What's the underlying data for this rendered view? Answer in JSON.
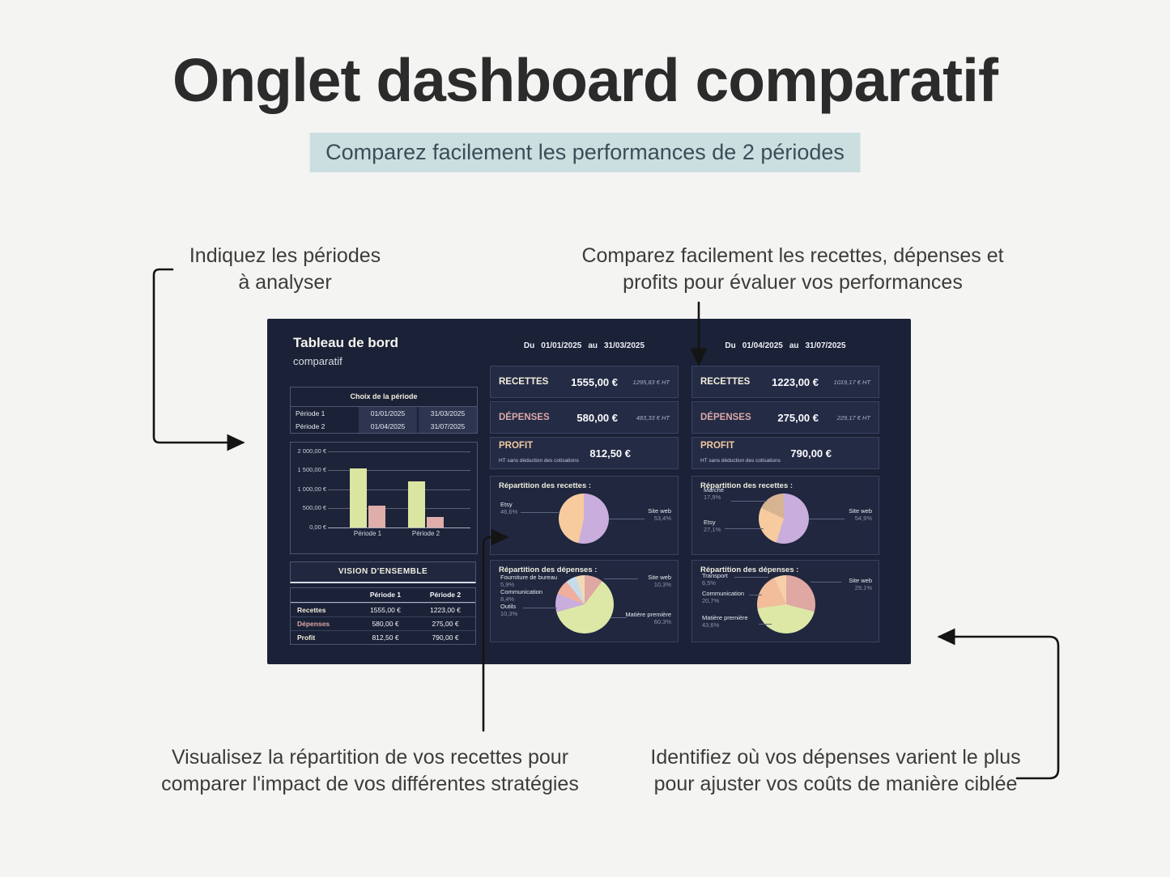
{
  "page": {
    "background": "#f4f4f2",
    "title": "Onglet dashboard comparatif",
    "subtitle": "Comparez facilement les performances de 2 périodes"
  },
  "annotations": {
    "top_left": {
      "line1": "Indiquez les périodes",
      "line2": "à analyser"
    },
    "top_right": {
      "line1": "Comparez facilement les recettes, dépenses et",
      "line2": "profits pour évaluer vos performances"
    },
    "bottom_left": {
      "line1": "Visualisez la répartition de vos recettes pour",
      "line2": "comparer l'impact de vos différentes stratégies"
    },
    "bottom_right": {
      "line1": "Identifiez où vos dépenses varient le plus",
      "line2": "pour ajuster vos coûts de manière ciblée"
    }
  },
  "dashboard": {
    "title": "Tableau de bord",
    "subtitle": "comparatif",
    "colors": {
      "background": "#1b2136",
      "card": "#242b45",
      "recettes_label": "#f2eddc",
      "depenses_label": "#dba8a8",
      "profit_label": "#f0c9a0",
      "bar_recettes": "#dbe5a2",
      "bar_depenses": "#dfaeab"
    },
    "period_selector": {
      "header": "Choix de la période",
      "rows": [
        {
          "label": "Période 1",
          "start": "01/01/2025",
          "end": "31/03/2025"
        },
        {
          "label": "Période 2",
          "start": "01/04/2025",
          "end": "31/07/2025"
        }
      ]
    },
    "columns": [
      {
        "date_range": {
          "du": "Du",
          "start": "01/01/2025",
          "au": "au",
          "end": "31/03/2025"
        },
        "cards": {
          "recettes": {
            "label": "RECETTES",
            "value": "1555,00 €",
            "ht": "1295,83 € HT"
          },
          "depenses": {
            "label": "DÉPENSES",
            "value": "580,00 €",
            "ht": "483,33 € HT"
          },
          "profit": {
            "label": "PROFIT",
            "note": "HT sans déduction des cotisations",
            "value": "812,50 €"
          }
        },
        "recettes_pie_title": "Répartition des recettes :",
        "depenses_pie_title": "Répartition des dépenses :"
      },
      {
        "date_range": {
          "du": "Du",
          "start": "01/04/2025",
          "au": "au",
          "end": "31/07/2025"
        },
        "cards": {
          "recettes": {
            "label": "RECETTES",
            "value": "1223,00 €",
            "ht": "1019,17 € HT"
          },
          "depenses": {
            "label": "DÉPENSES",
            "value": "275,00 €",
            "ht": "229,17 € HT"
          },
          "profit": {
            "label": "PROFIT",
            "note": "HT sans déduction des cotisations",
            "value": "790,00 €"
          }
        },
        "recettes_pie_title": "Répartition des recettes :",
        "depenses_pie_title": "Répartition des dépenses :"
      }
    ],
    "overview": {
      "header": "VISION D'ENSEMBLE",
      "col1": "Période 1",
      "col2": "Période 2",
      "rows": [
        {
          "label": "Recettes",
          "v1": "1555,00 €",
          "v2": "1223,00 €"
        },
        {
          "label": "Dépenses",
          "v1": "580,00 €",
          "v2": "275,00 €"
        },
        {
          "label": "Profit",
          "v1": "812,50 €",
          "v2": "790,00 €"
        }
      ]
    }
  },
  "chart_data": [
    {
      "type": "bar",
      "title": "",
      "categories": [
        "Période 1",
        "Période 2"
      ],
      "series": [
        {
          "name": "Recettes",
          "values": [
            1555,
            1223
          ],
          "color": "#dbe5a2"
        },
        {
          "name": "Dépenses",
          "values": [
            580,
            275
          ],
          "color": "#dfaeab"
        }
      ],
      "ylim": [
        0,
        2000
      ],
      "ytick_labels": [
        "2 000,00 €",
        "1 500,00 €",
        "1 000,00 €",
        "500,00 €",
        "0,00 €"
      ],
      "grid": true,
      "legend": false
    },
    {
      "type": "pie",
      "title": "Répartition des recettes :",
      "period": "Période 1",
      "slices": [
        {
          "label": "Site web",
          "value": 53.4,
          "pct_label": "53,4%",
          "color": "#c9addc"
        },
        {
          "label": "Etsy",
          "value": 46.6,
          "pct_label": "46,6%",
          "color": "#f7cb9e"
        }
      ]
    },
    {
      "type": "pie",
      "title": "Répartition des recettes :",
      "period": "Période 2",
      "slices": [
        {
          "label": "Site web",
          "value": 54.9,
          "pct_label": "54,9%",
          "color": "#c9addc"
        },
        {
          "label": "Etsy",
          "value": 27.1,
          "pct_label": "27,1%",
          "color": "#f7cb9e"
        },
        {
          "label": "Marché",
          "value": 17.9,
          "pct_label": "17,9%",
          "color": "#d6b492"
        }
      ]
    },
    {
      "type": "pie",
      "title": "Répartition des dépenses :",
      "period": "Période 1",
      "slices": [
        {
          "label": "Site web",
          "value": 10.3,
          "pct_label": "10,3%",
          "color": "#dfa8a3"
        },
        {
          "label": "Matière première",
          "value": 60.3,
          "pct_label": "60,3%",
          "color": "#dde8a7"
        },
        {
          "label": "Outils",
          "value": 10.3,
          "pct_label": "10,3%",
          "color": "#c9addc"
        },
        {
          "label": "Communication",
          "value": 8.4,
          "pct_label": "8,4%",
          "color": "#f0ae9d"
        },
        {
          "label": "Fourniture de bureau",
          "value": 5.9,
          "pct_label": "5,9%",
          "color": "#c6dcea"
        },
        {
          "label": "",
          "value": 4.8,
          "pct_label": "",
          "color": "#f2d9b8"
        }
      ]
    },
    {
      "type": "pie",
      "title": "Répartition des dépenses :",
      "period": "Période 2",
      "slices": [
        {
          "label": "Site web",
          "value": 29.1,
          "pct_label": "29,1%",
          "color": "#dfa8a3"
        },
        {
          "label": "Matière première",
          "value": 43.6,
          "pct_label": "43,6%",
          "color": "#dde8a7"
        },
        {
          "label": "Communication",
          "value": 20.7,
          "pct_label": "20,7%",
          "color": "#f2bd9b"
        },
        {
          "label": "Transport",
          "value": 6.5,
          "pct_label": "6,5%",
          "color": "#f6d0a8"
        }
      ]
    }
  ]
}
